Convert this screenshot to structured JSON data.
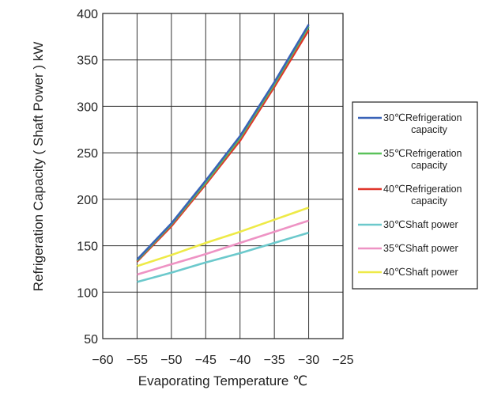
{
  "chart_data": {
    "type": "line",
    "xlabel": "Evaporating Temperature ℃",
    "ylabel": "Refrigeration Capacity ( Shaft Power ) kW",
    "xlim": [
      -60,
      -25
    ],
    "ylim": [
      50,
      400
    ],
    "xticks": [
      -60,
      -55,
      -50,
      -45,
      -40,
      -35,
      -30,
      -25
    ],
    "yticks": [
      50,
      100,
      150,
      200,
      250,
      300,
      350,
      400
    ],
    "x_tick_labels": [
      "−60",
      "−55",
      "−50",
      "−45",
      "−40",
      "−35",
      "−30",
      "−25"
    ],
    "y_tick_labels": [
      "50",
      "100",
      "150",
      "200",
      "250",
      "300",
      "350",
      "400"
    ],
    "grid": true,
    "legend_position": "right",
    "x": [
      -55,
      -50,
      -45,
      -40,
      -35,
      -30
    ],
    "series": [
      {
        "name": "30℃Refrigeration capacity",
        "legend_lines": [
          "30℃Refrigeration",
          "capacity"
        ],
        "color": "#3a63b8",
        "values": [
          135,
          174,
          220,
          268,
          326,
          388
        ]
      },
      {
        "name": "35℃Refrigeration capacity",
        "legend_lines": [
          "35℃Refrigeration",
          "capacity"
        ],
        "color": "#5ac25a",
        "values": [
          134,
          173,
          218,
          266,
          324,
          386
        ]
      },
      {
        "name": "40℃Refrigeration capacity",
        "legend_lines": [
          "40℃Refrigeration",
          "capacity"
        ],
        "color": "#e0352b",
        "values": [
          133,
          171,
          216,
          263,
          321,
          382
        ]
      },
      {
        "name": "30℃Shaft power",
        "legend_lines": [
          "30℃Shaft power"
        ],
        "color": "#6cc9cc",
        "values": [
          111,
          121,
          132,
          142,
          153,
          164
        ]
      },
      {
        "name": "35℃Shaft power",
        "legend_lines": [
          "35℃Shaft power"
        ],
        "color": "#ee93c4",
        "values": [
          119,
          130,
          141,
          153,
          165,
          177
        ]
      },
      {
        "name": "40℃Shaft power",
        "legend_lines": [
          "40℃Shaft power"
        ],
        "color": "#eeea47",
        "values": [
          128,
          140,
          153,
          165,
          178,
          191
        ]
      }
    ]
  }
}
